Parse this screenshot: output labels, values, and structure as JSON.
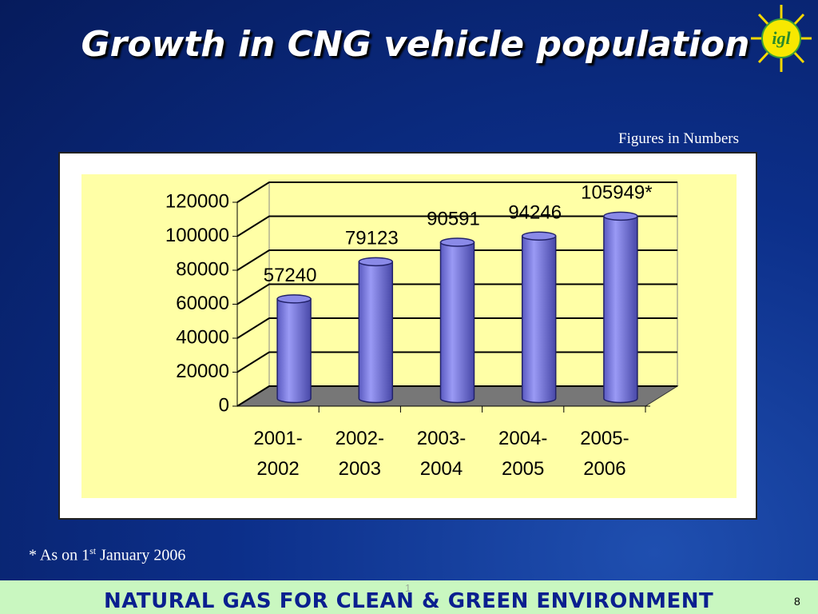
{
  "chart_data": {
    "type": "bar",
    "title": "Growth in CNG vehicle population",
    "subtitle": "Figures in Numbers",
    "categories": [
      "2001-2002",
      "2002-2003",
      "2003-2004",
      "2004-2005",
      "2005-2006"
    ],
    "values": [
      57240,
      79123,
      90591,
      94246,
      105949
    ],
    "value_labels": [
      "57240",
      "79123",
      "90591",
      "94246",
      "105949*"
    ],
    "color": "#8585e6",
    "ylim": [
      0,
      120000
    ],
    "yticks": [
      0,
      20000,
      40000,
      60000,
      80000,
      100000,
      120000
    ],
    "grid": true
  },
  "logo": "igl",
  "footnote": [
    "* As on 1",
    "st",
    " January 2006"
  ],
  "footer": {
    "text": "NATURAL GAS FOR CLEAN & GREEN ENVIRONMENT",
    "mark": "1",
    "page_number": "8"
  }
}
